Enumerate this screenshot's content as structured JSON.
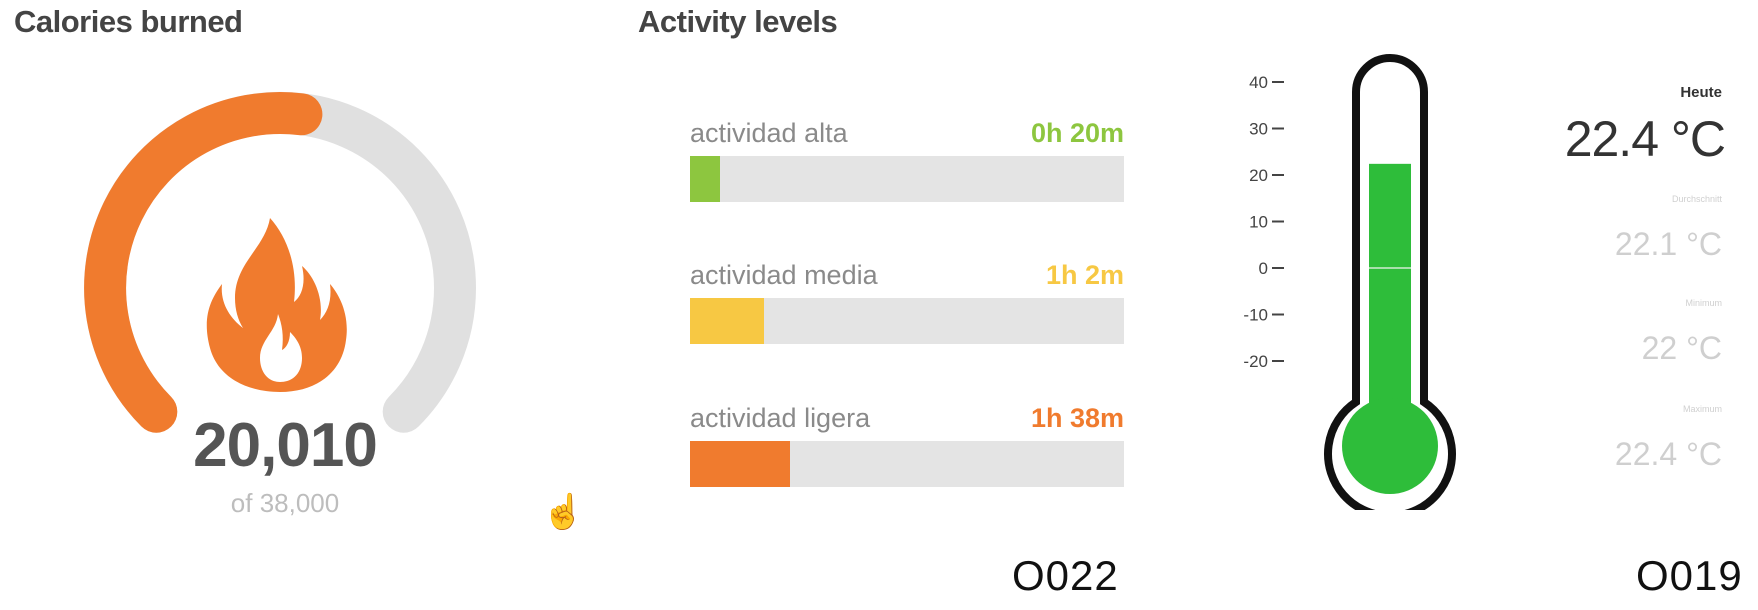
{
  "calories": {
    "title": "Calories burned",
    "value": "20,010",
    "goal": "of 38,000",
    "progress_fraction": 0.526,
    "colors": {
      "arc": "#f07b2e",
      "track": "#e0e0e0",
      "icon": "#f07b2e"
    },
    "icon": "flame-icon"
  },
  "activity": {
    "title": "Activity levels",
    "rows": [
      {
        "label": "actividad alta",
        "time": "0h 20m",
        "fraction": 0.07,
        "color": "#8dc63f"
      },
      {
        "label": "actividad media",
        "time": "1h 2m",
        "fraction": 0.17,
        "color": "#f7c843"
      },
      {
        "label": "actividad ligera",
        "time": "1h 38m",
        "fraction": 0.23,
        "color": "#f07b2e"
      }
    ]
  },
  "thermometer": {
    "scale_ticks": [
      "40",
      "30",
      "20",
      "10",
      "0",
      "-10",
      "-20"
    ],
    "fill_value_c": 22.4,
    "fill_color": "#2ebd3a",
    "today_label": "Heute",
    "today_value": "22.4 °C",
    "minor_labels": [
      "Durchschnitt",
      "Minimum",
      "Maximum"
    ],
    "minor_values": [
      "22.1 °C",
      "22 °C",
      "22.4 °C"
    ]
  },
  "footer": {
    "code_left": "O022",
    "code_right": "O019"
  }
}
